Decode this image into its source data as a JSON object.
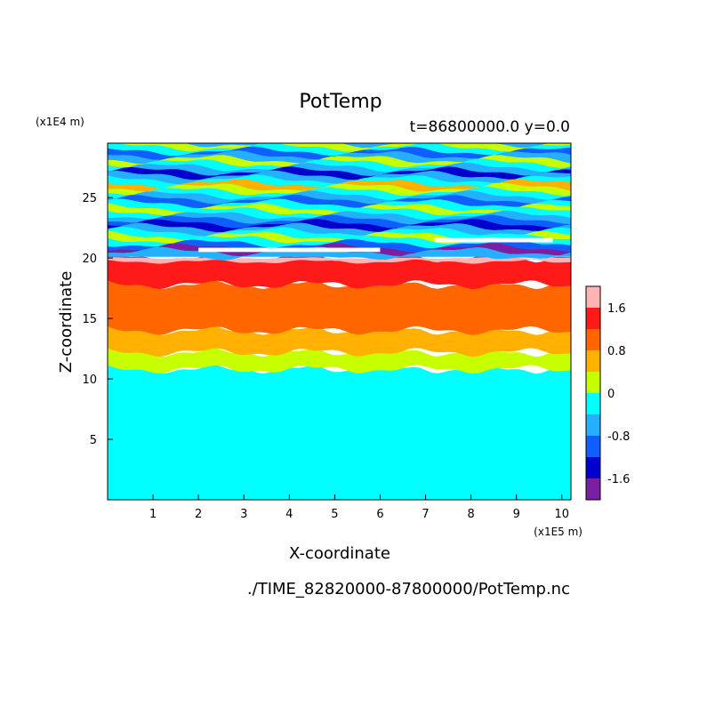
{
  "chart_data": {
    "type": "heatmap",
    "title": "PotTemp",
    "subtitle": "t=86800000.0 y=0.0",
    "xlabel": "X-coordinate",
    "ylabel": "Z-coordinate",
    "x_scale_label": "(x1E5 m)",
    "y_scale_label": "(x1E4 m)",
    "footer": "./TIME_82820000-87800000/PotTemp.nc",
    "xlim": [
      0,
      10.2
    ],
    "ylim": [
      0,
      29.5
    ],
    "x_ticks": [
      "1",
      "2",
      "3",
      "4",
      "5",
      "6",
      "7",
      "8",
      "9",
      "10"
    ],
    "y_ticks": [
      "5",
      "10",
      "15",
      "20",
      "25"
    ],
    "colorbar": {
      "levels": [
        -2.0,
        -1.6,
        -1.2,
        -0.8,
        -0.4,
        0.0,
        0.4,
        0.8,
        1.2,
        1.6,
        2.0
      ],
      "colors": [
        "#7a1fa2",
        "#0000cc",
        "#0f5fff",
        "#25b0ff",
        "#00ffff",
        "#c8ff00",
        "#ffb000",
        "#ff6600",
        "#ff1a1a",
        "#ffb3b3"
      ],
      "tick_labels": [
        "1.6",
        "0.8",
        "0",
        "-0.8",
        "-1.6"
      ],
      "tick_values": [
        1.6,
        0.8,
        0.0,
        -0.8,
        -1.6
      ]
    },
    "layers": [
      {
        "z_range": [
          0,
          10.8
        ],
        "value_band": [
          -0.4,
          0.0
        ],
        "color": "#00ffff"
      },
      {
        "z_range": [
          10.8,
          12.2
        ],
        "value_band": [
          0.0,
          0.4
        ],
        "color": "#c8ff00"
      },
      {
        "z_range": [
          12.2,
          14.0
        ],
        "value_band": [
          0.4,
          0.8
        ],
        "color": "#ffb000"
      },
      {
        "z_range": [
          14.0,
          17.8
        ],
        "value_band": [
          0.8,
          1.2
        ],
        "color": "#ff6600"
      },
      {
        "z_range": [
          17.8,
          20.0
        ],
        "value_band": [
          1.2,
          1.6
        ],
        "color": "#ff1a1a"
      },
      {
        "z_range": [
          20.0,
          29.5
        ],
        "value_band": [
          -1.6,
          0.4
        ],
        "color": "mixed"
      }
    ]
  }
}
